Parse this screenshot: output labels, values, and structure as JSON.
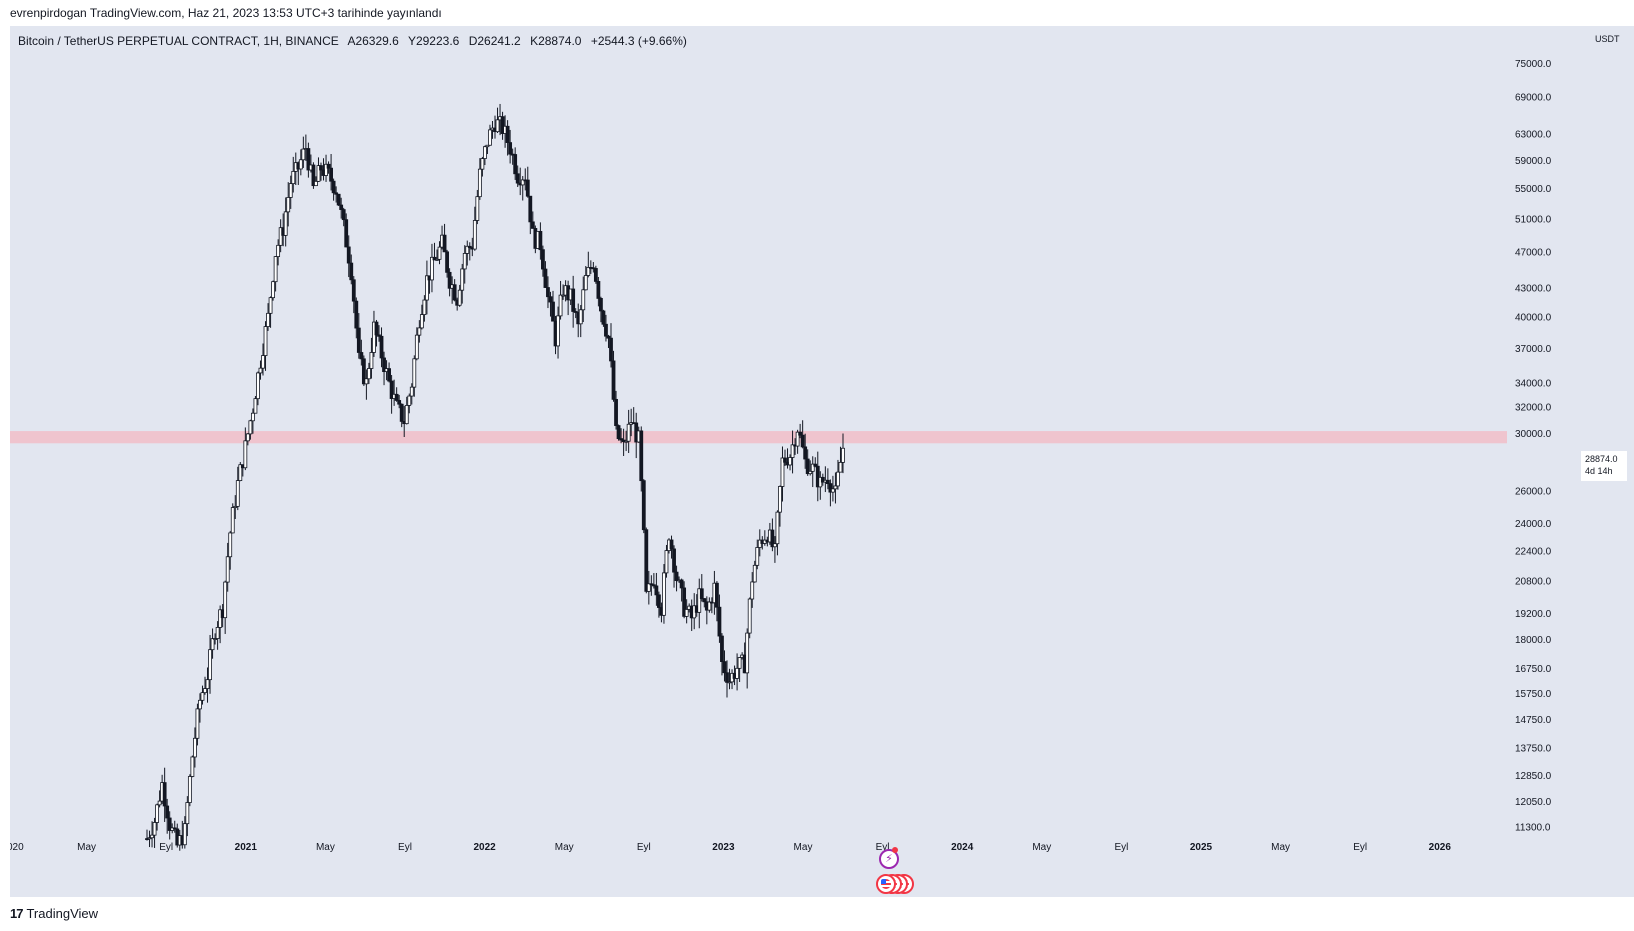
{
  "header": {
    "caption": "evrenpirdogan TradingView.com, Haz 21, 2023 13:53 UTC+3 tarihinde yayınlandı"
  },
  "legend": {
    "symbol": "Bitcoin / TetherUS PERPETUAL CONTRACT, 1H, BINANCE",
    "open": "A26329.6",
    "high": "Y29223.6",
    "low": "D26241.2",
    "close": "K28874.0",
    "change": "+2544.3 (+9.66%)"
  },
  "price_axis": {
    "currency": "USDT",
    "current_price": "28874.0",
    "countdown": "4d 14h"
  },
  "footer": {
    "logo_icon": "tradingview-logo-icon",
    "brand": "TradingView"
  },
  "events": {
    "event_icon": "lightning-icon",
    "flag_icon": "us-flag-icon"
  },
  "colors": {
    "background": "#e2e6f0",
    "candle": "#131722",
    "resistance_band": "#efc4ce"
  },
  "chart_data": {
    "type": "candlestick",
    "title": "Bitcoin / TetherUS PERPETUAL CONTRACT, 1H, BINANCE",
    "y_scale": "log",
    "ylim": [
      10800,
      80000
    ],
    "y_ticks": [
      "75000.0",
      "69000.0",
      "63000.0",
      "59000.0",
      "55000.0",
      "51000.0",
      "47000.0",
      "43000.0",
      "40000.0",
      "37000.0",
      "34000.0",
      "32000.0",
      "30000.0",
      "26000.0",
      "24000.0",
      "22400.0",
      "20800.0",
      "19200.0",
      "18000.0",
      "16750.0",
      "15750.0",
      "14750.0",
      "13750.0",
      "12850.0",
      "12050.0",
      "11300.0"
    ],
    "x_ticks": [
      {
        "label": "020",
        "year": false
      },
      {
        "label": "May",
        "year": false
      },
      {
        "label": "Eyl",
        "year": false
      },
      {
        "label": "2021",
        "year": true
      },
      {
        "label": "May",
        "year": false
      },
      {
        "label": "Eyl",
        "year": false
      },
      {
        "label": "2022",
        "year": true
      },
      {
        "label": "May",
        "year": false
      },
      {
        "label": "Eyl",
        "year": false
      },
      {
        "label": "2023",
        "year": true
      },
      {
        "label": "May",
        "year": false
      },
      {
        "label": "Eyl",
        "year": false
      },
      {
        "label": "2024",
        "year": true
      },
      {
        "label": "May",
        "year": false
      },
      {
        "label": "Eyl",
        "year": false
      },
      {
        "label": "2025",
        "year": true
      },
      {
        "label": "May",
        "year": false
      },
      {
        "label": "Eyl",
        "year": false
      },
      {
        "label": "2026",
        "year": true
      }
    ],
    "resistance_zone": [
      29300,
      30200
    ],
    "key_prices": [
      11000,
      11500,
      12600,
      11400,
      10800,
      11200,
      13500,
      15500,
      16500,
      18500,
      19500,
      23500,
      26500,
      29000,
      32000,
      36000,
      40000,
      47000,
      50000,
      56000,
      58000,
      61000,
      55000,
      58000,
      57000,
      55000,
      50000,
      45000,
      36000,
      34000,
      39000,
      36500,
      34000,
      32000,
      31000,
      34000,
      40000,
      44000,
      46000,
      48000,
      44000,
      42000,
      47000,
      48000,
      57000,
      62000,
      65000,
      64000,
      61000,
      57000,
      57000,
      49000,
      48000,
      42000,
      38000,
      43000,
      42000,
      39000,
      44000,
      46000,
      41000,
      38000,
      30000,
      29000,
      31000,
      29500,
      20000,
      21000,
      19500,
      23500,
      21000,
      19500,
      19000,
      20000,
      19300,
      20500,
      17000,
      16300,
      16800,
      17000,
      21000,
      23000,
      23500,
      22300,
      28000,
      28500,
      30500,
      28000,
      27500,
      26500,
      27000,
      25800,
      29000
    ]
  }
}
